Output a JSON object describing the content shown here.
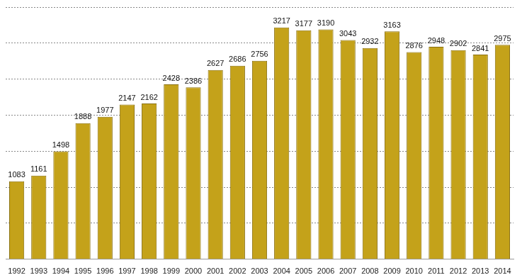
{
  "chart_data": {
    "type": "bar",
    "categories": [
      "1992",
      "1993",
      "1994",
      "1995",
      "1996",
      "1997",
      "1998",
      "1999",
      "2000",
      "2001",
      "2002",
      "2003",
      "2004",
      "2005",
      "2006",
      "2007",
      "2008",
      "2009",
      "2010",
      "2011",
      "2012",
      "2013",
      "2014"
    ],
    "values": [
      1083,
      1161,
      1498,
      1888,
      1977,
      2147,
      2162,
      2428,
      2386,
      2627,
      2686,
      2756,
      3217,
      3177,
      3190,
      3043,
      2932,
      3163,
      2876,
      2948,
      2902,
      2841,
      2975
    ],
    "color": "#c4a21a",
    "ylim": [
      0,
      3500
    ],
    "yticks": [
      0,
      500,
      1000,
      1500,
      2000,
      2500,
      3000,
      3500
    ],
    "grid": true,
    "data_labels": true,
    "tick_labels": "x"
  }
}
